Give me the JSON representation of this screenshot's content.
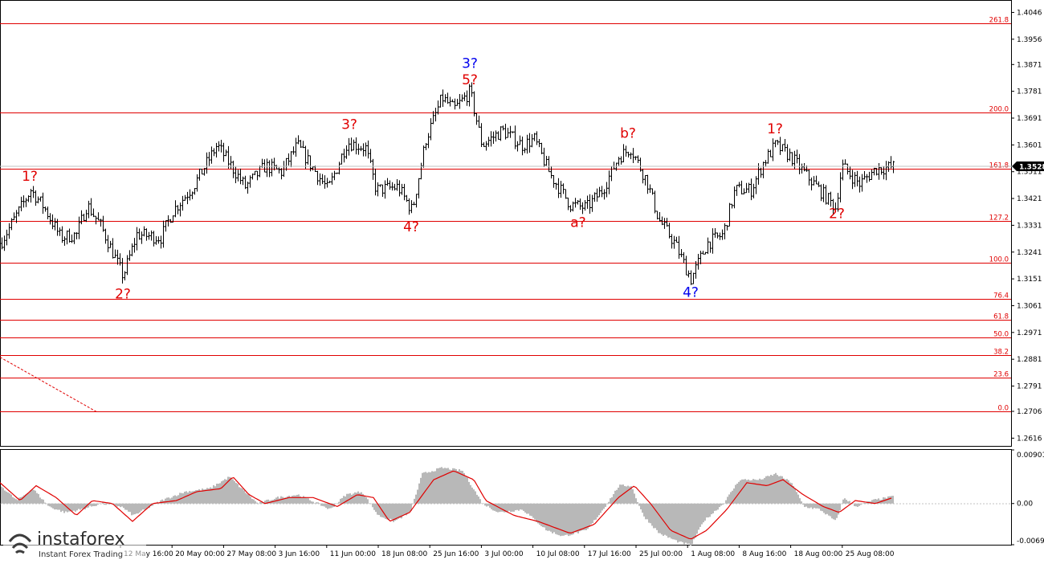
{
  "colors": {
    "background": "#ffffff",
    "fib_line": "#e00000",
    "wave_red": "#e00000",
    "wave_blue": "#0000ee",
    "candles": "#000000",
    "histogram": "#b8b8b8",
    "signal_line": "#e00000",
    "price_marker": "#000000",
    "trend_line": "#e00000"
  },
  "chart_data": [
    {
      "type": "candlestick",
      "price_axis_ticks": [
        "1.4046",
        "1.3956",
        "1.3871",
        "1.3781",
        "1.3691",
        "1.3601",
        "1.3511",
        "1.3421",
        "1.3331",
        "1.3241",
        "1.3151",
        "1.3061",
        "1.2971",
        "1.2881",
        "1.2791",
        "1.2706",
        "1.2616"
      ],
      "ylim": [
        1.259,
        1.4085
      ],
      "current_price": "1.3528",
      "time_axis_labels": [
        "12 May 16:00",
        "20 May 00:00",
        "27 May 08:00",
        "3 Jun 16:00",
        "11 Jun 00:00",
        "18 Jun 08:00",
        "25 Jun 16:00",
        "3 Jul 00:00",
        "10 Jul 08:00",
        "17 Jul 16:00",
        "25 Jul 00:00",
        "1 Aug 08:00",
        "8 Aug 16:00",
        "18 Aug 00:00",
        "25 Aug 08:00"
      ],
      "fibonacci_levels": [
        {
          "label": "261.8",
          "price": 1.401
        },
        {
          "label": "200.0",
          "price": 1.371
        },
        {
          "label": "161.8",
          "price": 1.352
        },
        {
          "label": "127.2",
          "price": 1.3345
        },
        {
          "label": "100.0",
          "price": 1.3205
        },
        {
          "label": "76.4",
          "price": 1.3085
        },
        {
          "label": "61.8",
          "price": 1.3015
        },
        {
          "label": "50.0",
          "price": 1.2955
        },
        {
          "label": "38.2",
          "price": 1.2895
        },
        {
          "label": "23.6",
          "price": 1.282
        },
        {
          "label": "0.0",
          "price": 1.2705
        }
      ],
      "price_path": [
        [
          0,
          1.327
        ],
        [
          15,
          1.334
        ],
        [
          38,
          1.345
        ],
        [
          55,
          1.339
        ],
        [
          75,
          1.329
        ],
        [
          95,
          1.33
        ],
        [
          108,
          1.34
        ],
        [
          125,
          1.333
        ],
        [
          140,
          1.324
        ],
        [
          153,
          1.316
        ],
        [
          170,
          1.33
        ],
        [
          200,
          1.329
        ],
        [
          215,
          1.338
        ],
        [
          240,
          1.346
        ],
        [
          270,
          1.36
        ],
        [
          285,
          1.354
        ],
        [
          305,
          1.346
        ],
        [
          330,
          1.353
        ],
        [
          350,
          1.351
        ],
        [
          370,
          1.36
        ],
        [
          385,
          1.354
        ],
        [
          408,
          1.345
        ],
        [
          432,
          1.361
        ],
        [
          455,
          1.359
        ],
        [
          468,
          1.345
        ],
        [
          495,
          1.346
        ],
        [
          513,
          1.338
        ],
        [
          530,
          1.362
        ],
        [
          550,
          1.376
        ],
        [
          565,
          1.372
        ],
        [
          585,
          1.378
        ],
        [
          600,
          1.36
        ],
        [
          625,
          1.365
        ],
        [
          650,
          1.36
        ],
        [
          665,
          1.362
        ],
        [
          685,
          1.35
        ],
        [
          710,
          1.34
        ],
        [
          730,
          1.339
        ],
        [
          750,
          1.345
        ],
        [
          770,
          1.356
        ],
        [
          785,
          1.359
        ],
        [
          805,
          1.348
        ],
        [
          820,
          1.335
        ],
        [
          840,
          1.327
        ],
        [
          860,
          1.315
        ],
        [
          880,
          1.327
        ],
        [
          900,
          1.33
        ],
        [
          915,
          1.345
        ],
        [
          935,
          1.345
        ],
        [
          950,
          1.354
        ],
        [
          965,
          1.36
        ],
        [
          985,
          1.356
        ],
        [
          1000,
          1.351
        ],
        [
          1020,
          1.345
        ],
        [
          1040,
          1.339
        ],
        [
          1048,
          1.353
        ],
        [
          1070,
          1.347
        ],
        [
          1090,
          1.352
        ],
        [
          1112,
          1.3528
        ]
      ],
      "wave_labels": [
        {
          "text": "1?",
          "color": "red",
          "x_bar": 37,
          "price": 1.348
        },
        {
          "text": "2?",
          "color": "red",
          "x_bar": 153,
          "price": 1.3085
        },
        {
          "text": "3?",
          "color": "red",
          "x_bar": 435,
          "price": 1.3655
        },
        {
          "text": "4?",
          "color": "red",
          "x_bar": 512,
          "price": 1.331
        },
        {
          "text": "3?",
          "color": "blue",
          "x_bar": 585,
          "price": 1.386
        },
        {
          "text": "5?",
          "color": "red",
          "x_bar": 585,
          "price": 1.3805
        },
        {
          "text": "a?",
          "color": "red",
          "x_bar": 720,
          "price": 1.3325
        },
        {
          "text": "b?",
          "color": "red",
          "x_bar": 782,
          "price": 1.3625
        },
        {
          "text": "4?",
          "color": "blue",
          "x_bar": 860,
          "price": 1.309
        },
        {
          "text": "1?",
          "color": "red",
          "x_bar": 965,
          "price": 1.364
        },
        {
          "text": "2?",
          "color": "red",
          "x_bar": 1042,
          "price": 1.3355
        }
      ],
      "trend_line": [
        [
          0,
          1.2888
        ],
        [
          120,
          1.2705
        ]
      ]
    },
    {
      "type": "histogram",
      "indicator": "MACD",
      "axis_ticks": [
        "0.00901",
        "0.00",
        "-0.00692"
      ],
      "ylim": [
        -0.00692,
        0.00901
      ],
      "histogram_path": [
        [
          0,
          0.003
        ],
        [
          20,
          0.0005
        ],
        [
          40,
          0.0025
        ],
        [
          60,
          -0.0005
        ],
        [
          80,
          -0.0015
        ],
        [
          100,
          -0.001
        ],
        [
          125,
          0.0
        ],
        [
          150,
          -0.0005
        ],
        [
          165,
          -0.002
        ],
        [
          180,
          -0.001
        ],
        [
          200,
          0.0005
        ],
        [
          230,
          0.002
        ],
        [
          260,
          0.0025
        ],
        [
          285,
          0.0045
        ],
        [
          300,
          0.0025
        ],
        [
          320,
          0.0
        ],
        [
          345,
          0.001
        ],
        [
          370,
          0.0015
        ],
        [
          395,
          0.0
        ],
        [
          410,
          -0.001
        ],
        [
          430,
          0.0015
        ],
        [
          450,
          0.002
        ],
        [
          470,
          -0.002
        ],
        [
          490,
          -0.003
        ],
        [
          510,
          -0.0015
        ],
        [
          525,
          0.005
        ],
        [
          550,
          0.006
        ],
        [
          575,
          0.0055
        ],
        [
          600,
          0.0
        ],
        [
          620,
          -0.0015
        ],
        [
          650,
          -0.001
        ],
        [
          680,
          -0.0045
        ],
        [
          700,
          -0.0055
        ],
        [
          730,
          -0.0045
        ],
        [
          750,
          -0.001
        ],
        [
          770,
          0.003
        ],
        [
          785,
          0.003
        ],
        [
          800,
          -0.002
        ],
        [
          820,
          -0.005
        ],
        [
          845,
          -0.0065
        ],
        [
          860,
          -0.007
        ],
        [
          875,
          -0.003
        ],
        [
          900,
          0.0
        ],
        [
          920,
          0.004
        ],
        [
          945,
          0.004
        ],
        [
          965,
          0.005
        ],
        [
          985,
          0.0035
        ],
        [
          1000,
          -0.0005
        ],
        [
          1020,
          -0.001
        ],
        [
          1040,
          -0.003
        ],
        [
          1050,
          0.001
        ],
        [
          1065,
          -0.0005
        ],
        [
          1085,
          0.0005
        ],
        [
          1112,
          0.0012
        ]
      ],
      "signal_path": [
        [
          0,
          0.0035
        ],
        [
          25,
          0.0005
        ],
        [
          45,
          0.003
        ],
        [
          70,
          0.001
        ],
        [
          95,
          -0.002
        ],
        [
          115,
          0.0005
        ],
        [
          140,
          0.0
        ],
        [
          165,
          -0.003
        ],
        [
          190,
          0.0
        ],
        [
          220,
          0.0005
        ],
        [
          245,
          0.002
        ],
        [
          275,
          0.0025
        ],
        [
          290,
          0.0045
        ],
        [
          310,
          0.0015
        ],
        [
          330,
          0.0
        ],
        [
          360,
          0.001
        ],
        [
          390,
          0.001
        ],
        [
          420,
          -0.0005
        ],
        [
          445,
          0.0015
        ],
        [
          465,
          0.001
        ],
        [
          485,
          -0.003
        ],
        [
          510,
          -0.0015
        ],
        [
          540,
          0.004
        ],
        [
          565,
          0.0055
        ],
        [
          590,
          0.004
        ],
        [
          605,
          0.0005
        ],
        [
          640,
          -0.002
        ],
        [
          670,
          -0.003
        ],
        [
          710,
          -0.005
        ],
        [
          740,
          -0.0035
        ],
        [
          770,
          0.001
        ],
        [
          790,
          0.003
        ],
        [
          810,
          0.0
        ],
        [
          835,
          -0.0045
        ],
        [
          860,
          -0.006
        ],
        [
          880,
          -0.0045
        ],
        [
          905,
          -0.001
        ],
        [
          930,
          0.0035
        ],
        [
          955,
          0.003
        ],
        [
          975,
          0.004
        ],
        [
          1000,
          0.0015
        ],
        [
          1025,
          -0.0005
        ],
        [
          1045,
          -0.0015
        ],
        [
          1065,
          0.0005
        ],
        [
          1090,
          0.0
        ],
        [
          1112,
          0.001
        ]
      ]
    }
  ],
  "branding": {
    "name": "instaforex",
    "tagline": "Instant Forex Trading"
  }
}
